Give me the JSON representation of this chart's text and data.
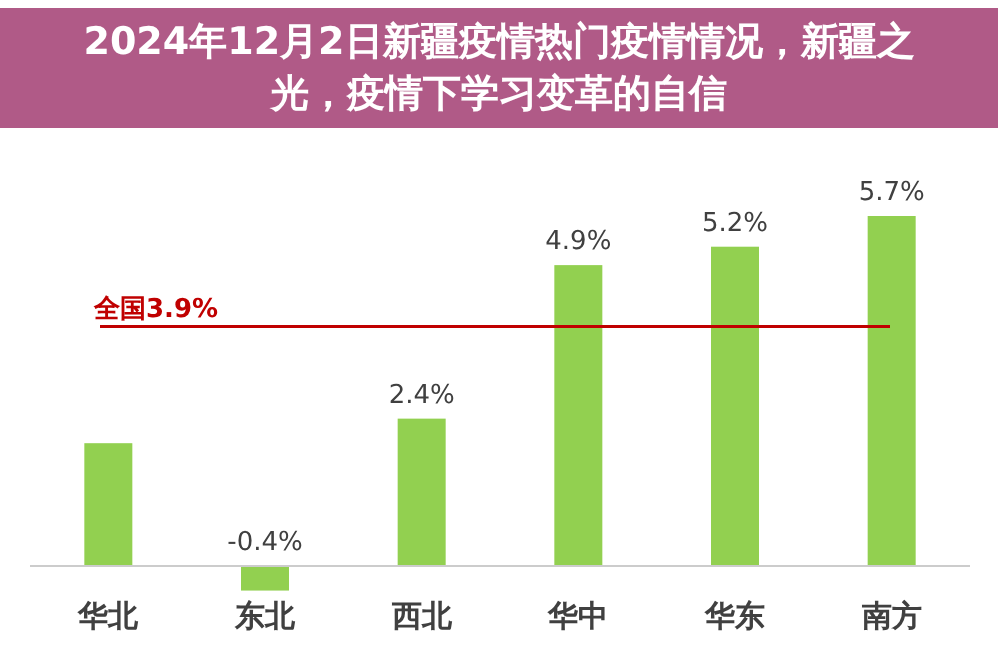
{
  "chart_data": {
    "type": "bar",
    "title": "2024年12月2日新疆疫情热门疫情情况，新疆之光，疫情下学习变革的自信",
    "categories": [
      "华北",
      "东北",
      "西北",
      "华中",
      "华东",
      "南方"
    ],
    "values": [
      2.0,
      -0.4,
      2.4,
      4.9,
      5.2,
      5.7
    ],
    "value_labels": [
      null,
      "-0.4%",
      "2.4%",
      "4.9%",
      "5.2%",
      "5.7%"
    ],
    "color": "#92d050",
    "ref_lines": [
      {
        "axis": "y",
        "value": 3.9,
        "label": "全国3.9%",
        "color": "#c00000"
      }
    ]
  }
}
